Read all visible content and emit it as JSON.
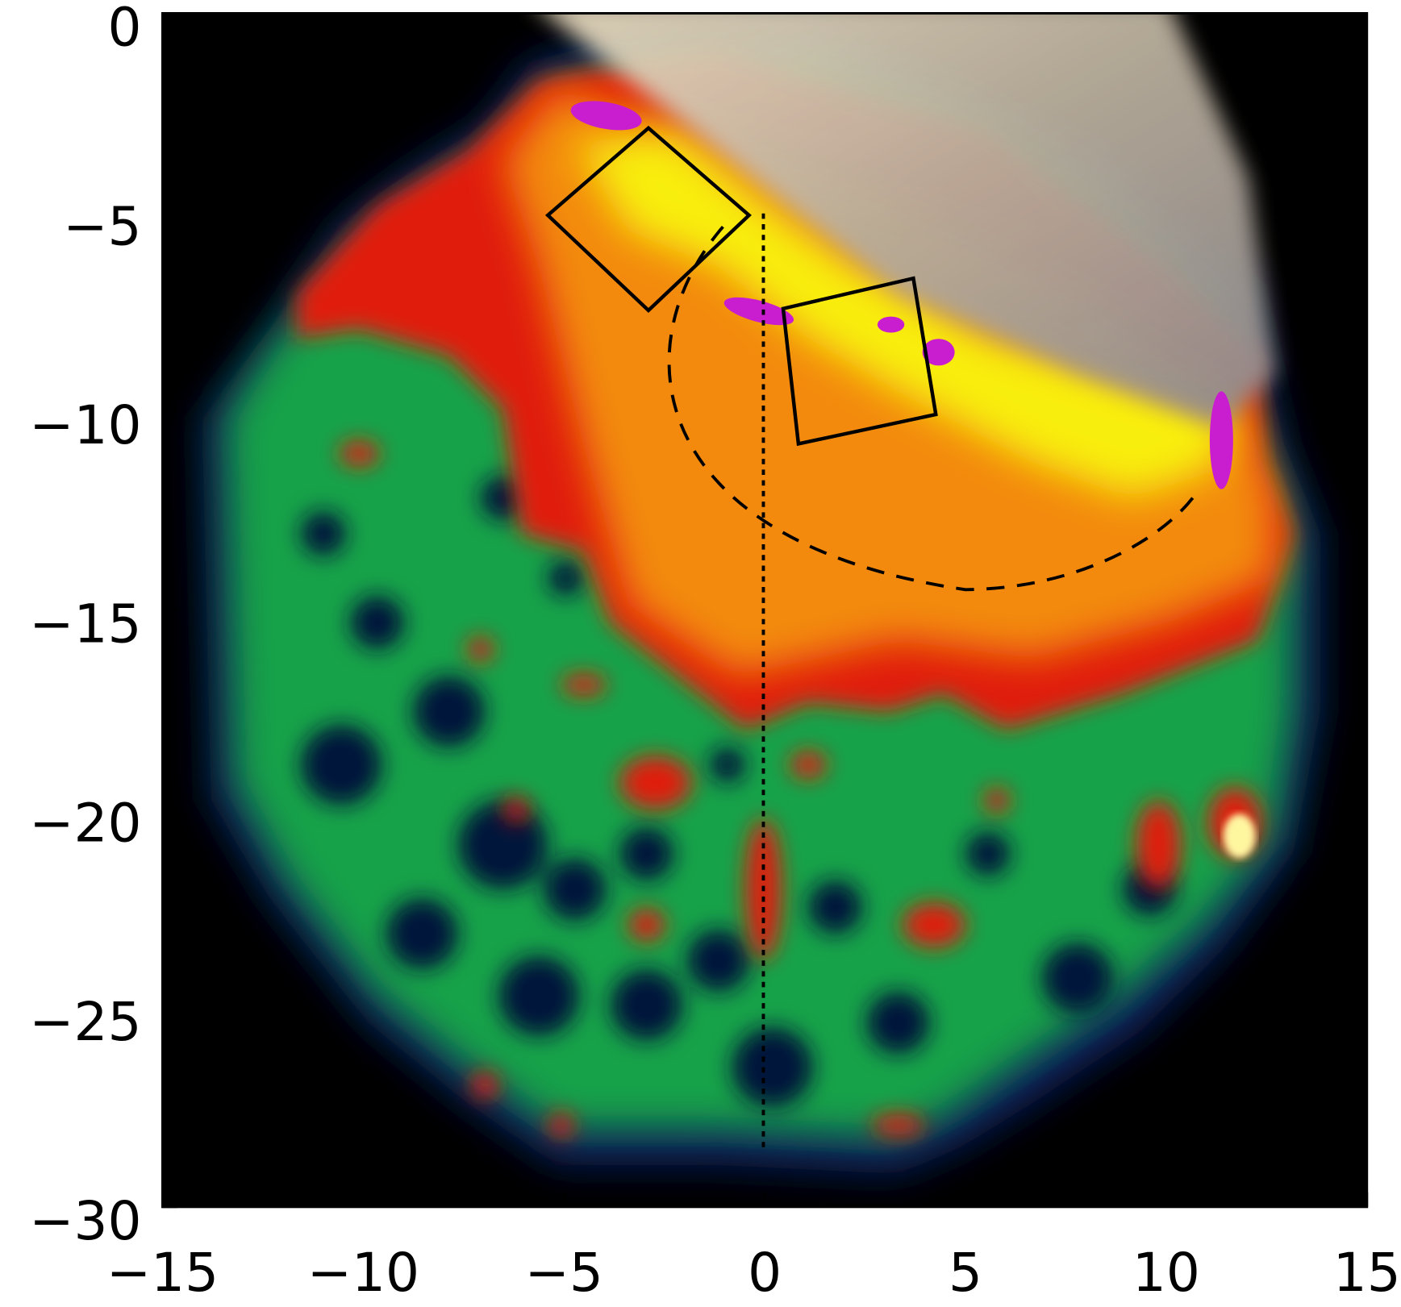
{
  "chart_data": {
    "type": "image",
    "xlim": [
      -15,
      15
    ],
    "ylim": [
      -30,
      0
    ],
    "xticks": [
      {
        "value": -15,
        "label": "−15"
      },
      {
        "value": -10,
        "label": "−10"
      },
      {
        "value": -5,
        "label": "−5"
      },
      0,
      5,
      10,
      15
    ],
    "yticks": [
      0,
      {
        "value": -5,
        "label": "−5"
      },
      {
        "value": -10,
        "label": "−10"
      },
      {
        "value": -15,
        "label": "−15"
      },
      {
        "value": -20,
        "label": "−20"
      },
      {
        "value": -25,
        "label": "−25"
      },
      {
        "value": -30,
        "label": "−30"
      }
    ]
  }
}
